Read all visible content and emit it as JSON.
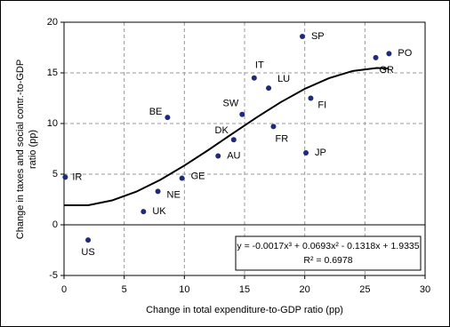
{
  "chart_data": {
    "type": "scatter",
    "xlabel": "Change in total expenditure-to-GDP ratio (pp)",
    "ylabel": [
      "Change in taxes and social contr.-to-GDP",
      "ratio (pp)"
    ],
    "xlim": [
      0,
      30
    ],
    "xticks": [
      0,
      5,
      10,
      15,
      20,
      25,
      30
    ],
    "ylim": [
      -5,
      20
    ],
    "yticks": [
      -5,
      0,
      5,
      10,
      15,
      20
    ],
    "grid": true,
    "color": "#1f2a7a",
    "labels": [
      "IR",
      "US",
      "UK",
      "NE",
      "GE",
      "BE",
      "AU",
      "DK",
      "SW",
      "IT",
      "LU",
      "FR",
      "SP",
      "FI",
      "JP",
      "GR",
      "PO"
    ],
    "x": [
      0.1,
      2.0,
      6.6,
      7.8,
      9.8,
      8.6,
      12.8,
      14.1,
      14.8,
      15.8,
      17.0,
      17.4,
      19.8,
      20.5,
      20.1,
      25.9,
      27.0
    ],
    "values": [
      4.7,
      -1.5,
      1.3,
      3.3,
      4.6,
      10.6,
      6.8,
      8.4,
      10.9,
      14.5,
      13.5,
      9.7,
      18.6,
      12.5,
      7.1,
      16.5,
      16.9
    ],
    "trendline": {
      "color": "#000000",
      "x": [
        0,
        2,
        4,
        6,
        8,
        10,
        12,
        14,
        16,
        18,
        20,
        22,
        24,
        26,
        27
      ],
      "values": [
        1.93,
        1.93,
        2.41,
        3.27,
        4.44,
        5.85,
        7.39,
        9.01,
        10.6,
        12.1,
        13.42,
        14.47,
        15.19,
        15.48,
        15.43
      ],
      "equation": "y = -0.0017x³ + 0.0693x² - 0.1318x + 1.9335",
      "r2": "R² = 0.6978"
    }
  }
}
